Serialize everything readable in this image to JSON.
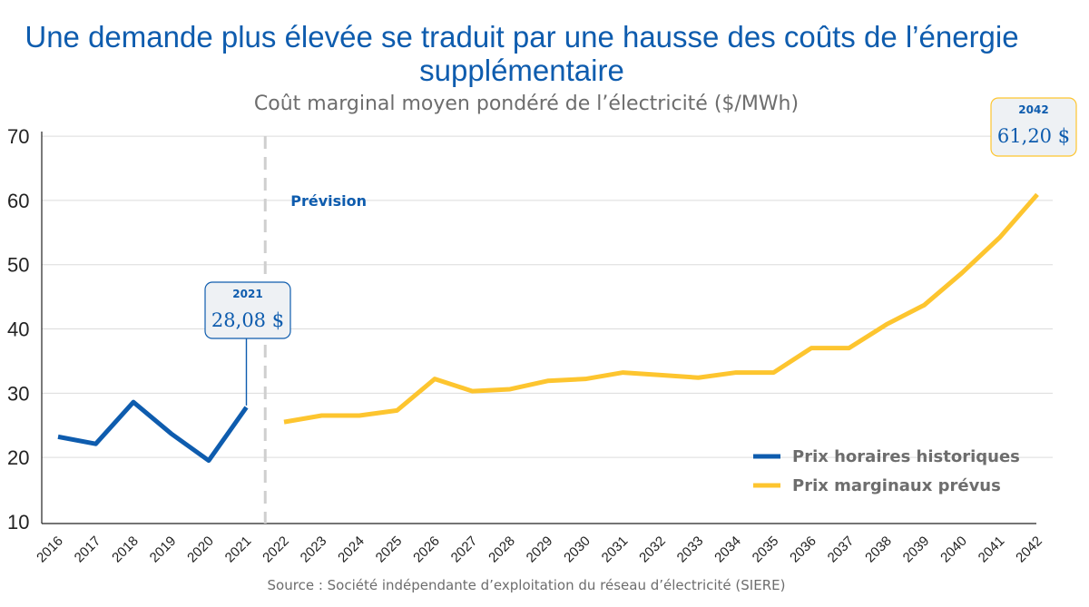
{
  "chart_data": {
    "type": "line",
    "title": "Une demande plus élevée se traduit par une hausse des coûts de l’énergie supplémentaire",
    "subtitle": "Coût marginal moyen pondéré de l’électricité ($/MWh)",
    "source": "Source : Société indépendante d’exploitation du réseau d’électricité (SIERE)",
    "ylim": [
      10,
      71
    ],
    "yticks": [
      10,
      20,
      30,
      40,
      50,
      60,
      70
    ],
    "grid": true,
    "legend_position": "bottom-right",
    "forecast_label": "Prévision",
    "categories": [
      "2016",
      "2017",
      "2018",
      "2019",
      "2020",
      "2021",
      "2022",
      "2023",
      "2024",
      "2025",
      "2026",
      "2027",
      "2028",
      "2029",
      "2030",
      "2031",
      "2032",
      "2033",
      "2034",
      "2035",
      "2036",
      "2037",
      "2038",
      "2039",
      "2040",
      "2041",
      "2042"
    ],
    "series": [
      {
        "name": "Prix horaires historiques",
        "color": "#0e5cae",
        "x": [
          "2016",
          "2017",
          "2018",
          "2019",
          "2020",
          "2021"
        ],
        "values": [
          23.5,
          22.4,
          28.9,
          24.0,
          19.8,
          28.08
        ]
      },
      {
        "name": "Prix marginaux prévus",
        "color": "#fdc52f",
        "x": [
          "2022",
          "2023",
          "2024",
          "2025",
          "2026",
          "2027",
          "2028",
          "2029",
          "2030",
          "2031",
          "2032",
          "2033",
          "2034",
          "2035",
          "2036",
          "2037",
          "2038",
          "2039",
          "2040",
          "2041",
          "2042"
        ],
        "values": [
          25.8,
          26.8,
          26.8,
          27.6,
          32.5,
          30.6,
          30.9,
          32.2,
          32.5,
          33.5,
          33.1,
          32.7,
          33.5,
          33.5,
          37.3,
          37.3,
          41.0,
          44.0,
          49.0,
          54.5,
          61.2
        ]
      }
    ],
    "annotations": [
      {
        "year": "2021",
        "value": "28,08 $",
        "color": "#0e5cae"
      },
      {
        "year": "2042",
        "value": "61,20 $",
        "color": "#fdc52f"
      }
    ]
  }
}
